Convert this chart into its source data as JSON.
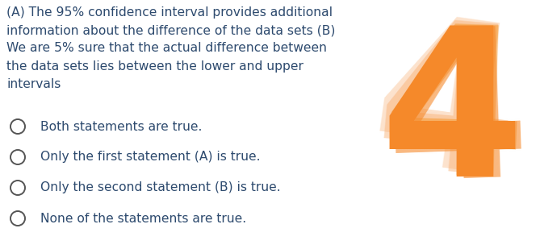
{
  "background_color": "#ffffff",
  "text_color": "#2d4a6e",
  "question_text": "(A) The 95% confidence interval provides additional\ninformation about the difference of the data sets (B)\nWe are 5% sure that the actual difference between\nthe data sets lies between the lower and upper\nintervals",
  "options": [
    "Both statements are true.",
    "Only the first statement (A) is true.",
    "Only the second statement (B) is true.",
    "None of the statements are true."
  ],
  "number": "4",
  "number_color": "#f5892a",
  "number_shadow_color": "#f8ad6e",
  "number_fontsize": 185,
  "question_fontsize": 11.2,
  "option_fontsize": 11.2,
  "circle_color": "#555555",
  "fig_width": 6.69,
  "fig_height": 3.04,
  "dpi": 100
}
